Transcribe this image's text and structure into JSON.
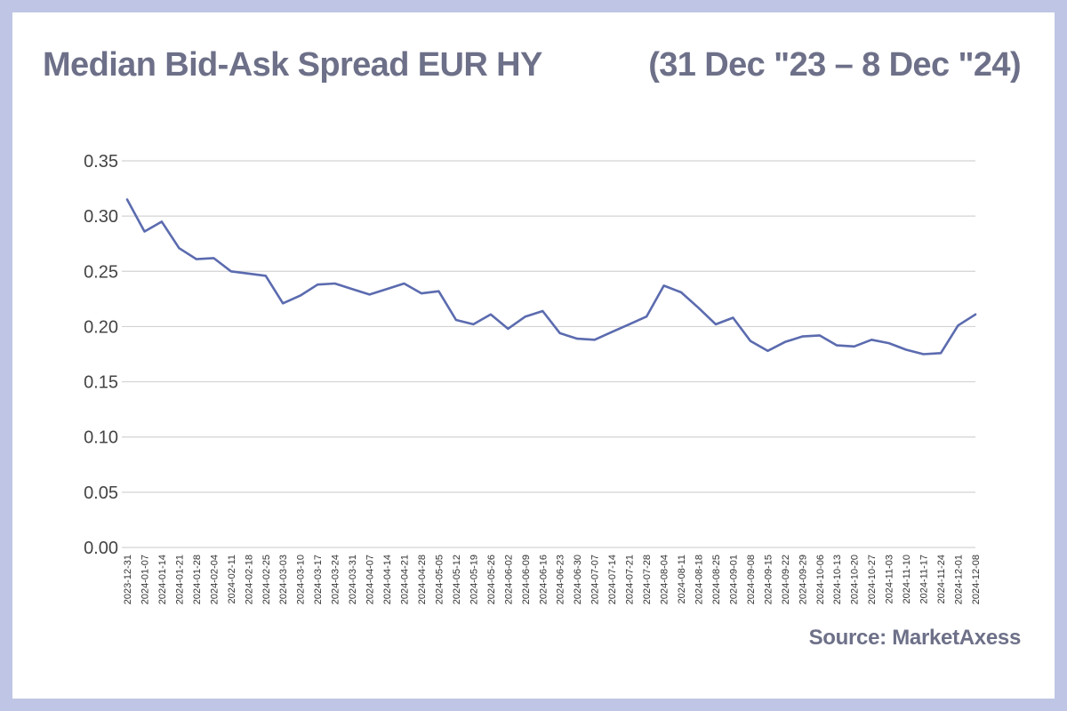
{
  "chart_data": {
    "type": "line",
    "title": "Median Bid-Ask Spread EUR HY",
    "subtitle": "(31 Dec \"23 – 8 Dec \"24)",
    "source": "Source: MarketAxess",
    "xlabel": "",
    "ylabel": "",
    "ylim": [
      0,
      0.35
    ],
    "yticks": [
      "0.00",
      "0.05",
      "0.10",
      "0.15",
      "0.20",
      "0.25",
      "0.30",
      "0.35"
    ],
    "grid": true,
    "line_color": "#5b6baf",
    "x": [
      "2023-12-31",
      "2024-01-07",
      "2024-01-14",
      "2024-01-21",
      "2024-01-28",
      "2024-02-04",
      "2024-02-11",
      "2024-02-18",
      "2024-02-25",
      "2024-03-03",
      "2024-03-10",
      "2024-03-17",
      "2024-03-24",
      "2024-03-31",
      "2024-04-07",
      "2024-04-14",
      "2024-04-21",
      "2024-04-28",
      "2024-05-05",
      "2024-05-12",
      "2024-05-19",
      "2024-05-26",
      "2024-06-02",
      "2024-06-09",
      "2024-06-16",
      "2024-06-23",
      "2024-06-30",
      "2024-07-07",
      "2024-07-14",
      "2024-07-21",
      "2024-07-28",
      "2024-08-04",
      "2024-08-11",
      "2024-08-18",
      "2024-08-25",
      "2024-09-01",
      "2024-09-08",
      "2024-09-15",
      "2024-09-22",
      "2024-09-29",
      "2024-10-06",
      "2024-10-13",
      "2024-10-20",
      "2024-10-27",
      "2024-11-03",
      "2024-11-10",
      "2024-11-17",
      "2024-11-24",
      "2024-12-01",
      "2024-12-08"
    ],
    "series": [
      {
        "values": [
          0.315,
          0.286,
          0.295,
          0.271,
          0.261,
          0.262,
          0.25,
          0.248,
          0.246,
          0.221,
          0.228,
          0.238,
          0.239,
          0.234,
          0.229,
          0.234,
          0.239,
          0.23,
          0.232,
          0.206,
          0.202,
          0.211,
          0.198,
          0.209,
          0.214,
          0.194,
          0.189,
          0.188,
          0.195,
          0.202,
          0.209,
          0.237,
          0.231,
          0.217,
          0.202,
          0.208,
          0.187,
          0.178,
          0.186,
          0.191,
          0.192,
          0.183,
          0.182,
          0.188,
          0.185,
          0.179,
          0.175,
          0.176,
          0.201,
          0.211
        ]
      }
    ]
  },
  "colors": {
    "background": "#bfc5e4",
    "panel": "#ffffff",
    "title": "#6d7088",
    "grid": "#d3d3d3",
    "line": "#5b6baf"
  }
}
